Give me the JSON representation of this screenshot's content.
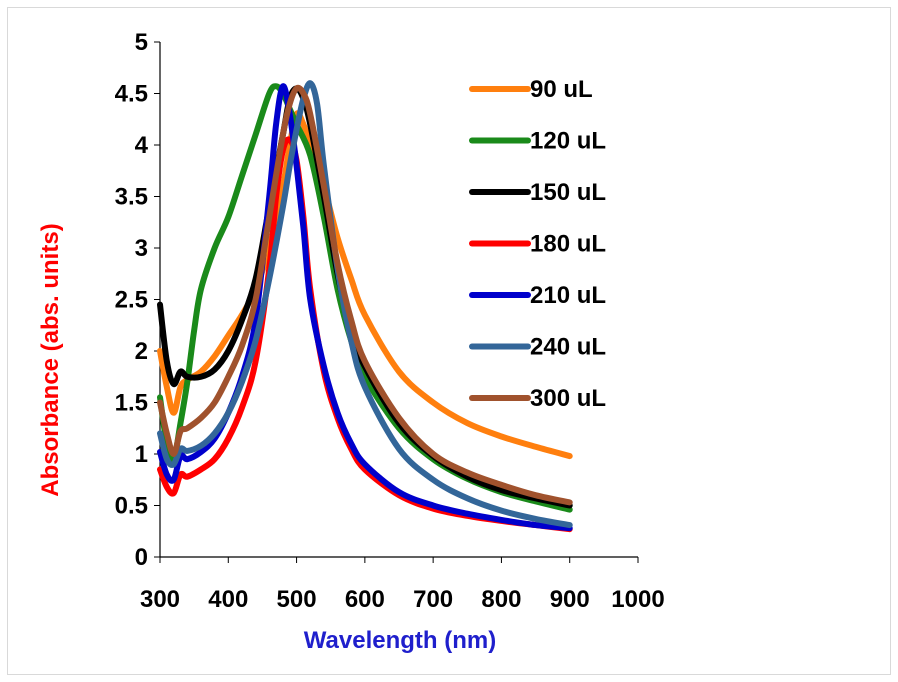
{
  "chart_data": {
    "type": "line",
    "xlabel": "Wavelength (nm)",
    "ylabel": "Absorbance (abs. units)",
    "xlabel_color": "#1f1fcc",
    "ylabel_color": "#ff0000",
    "xlim": [
      300,
      1000
    ],
    "ylim": [
      0,
      5
    ],
    "xticks": [
      300,
      400,
      500,
      600,
      700,
      800,
      900,
      1000
    ],
    "yticks": [
      0,
      0.5,
      1,
      1.5,
      2,
      2.5,
      3,
      3.5,
      4,
      4.5,
      5
    ],
    "ytick_labels": [
      "0",
      "0.5",
      "1",
      "1.5",
      "2",
      "2.5",
      "3",
      "3.5",
      "4",
      "4.5",
      "5"
    ],
    "grid": false,
    "legend_position": "top-right",
    "series": [
      {
        "name": "90 uL",
        "color": "#ff7f0e",
        "points": [
          [
            300,
            2.0
          ],
          [
            310,
            1.65
          ],
          [
            320,
            1.4
          ],
          [
            330,
            1.65
          ],
          [
            340,
            1.72
          ],
          [
            360,
            1.8
          ],
          [
            380,
            1.95
          ],
          [
            400,
            2.15
          ],
          [
            420,
            2.35
          ],
          [
            440,
            2.6
          ],
          [
            460,
            3.0
          ],
          [
            480,
            3.6
          ],
          [
            490,
            4.0
          ],
          [
            500,
            4.3
          ],
          [
            510,
            4.2
          ],
          [
            520,
            4.0
          ],
          [
            540,
            3.6
          ],
          [
            560,
            3.1
          ],
          [
            580,
            2.7
          ],
          [
            600,
            2.35
          ],
          [
            650,
            1.8
          ],
          [
            700,
            1.5
          ],
          [
            750,
            1.3
          ],
          [
            800,
            1.17
          ],
          [
            850,
            1.07
          ],
          [
            900,
            0.98
          ]
        ]
      },
      {
        "name": "120 uL",
        "color": "#1a8a1a",
        "points": [
          [
            300,
            1.55
          ],
          [
            310,
            1.1
          ],
          [
            320,
            0.95
          ],
          [
            330,
            1.3
          ],
          [
            340,
            1.7
          ],
          [
            350,
            2.2
          ],
          [
            360,
            2.6
          ],
          [
            380,
            3.0
          ],
          [
            400,
            3.3
          ],
          [
            420,
            3.7
          ],
          [
            440,
            4.1
          ],
          [
            460,
            4.5
          ],
          [
            470,
            4.57
          ],
          [
            480,
            4.5
          ],
          [
            490,
            4.35
          ],
          [
            500,
            4.2
          ],
          [
            520,
            3.9
          ],
          [
            540,
            3.3
          ],
          [
            560,
            2.6
          ],
          [
            580,
            2.1
          ],
          [
            600,
            1.75
          ],
          [
            650,
            1.25
          ],
          [
            700,
            0.95
          ],
          [
            750,
            0.76
          ],
          [
            800,
            0.63
          ],
          [
            850,
            0.54
          ],
          [
            900,
            0.46
          ]
        ]
      },
      {
        "name": "150 uL",
        "color": "#000000",
        "points": [
          [
            300,
            2.45
          ],
          [
            310,
            1.9
          ],
          [
            320,
            1.68
          ],
          [
            330,
            1.8
          ],
          [
            340,
            1.75
          ],
          [
            360,
            1.75
          ],
          [
            380,
            1.82
          ],
          [
            400,
            2.0
          ],
          [
            420,
            2.3
          ],
          [
            440,
            2.7
          ],
          [
            460,
            3.4
          ],
          [
            480,
            4.1
          ],
          [
            490,
            4.45
          ],
          [
            500,
            4.55
          ],
          [
            510,
            4.45
          ],
          [
            520,
            4.2
          ],
          [
            540,
            3.5
          ],
          [
            560,
            2.75
          ],
          [
            580,
            2.2
          ],
          [
            600,
            1.85
          ],
          [
            650,
            1.3
          ],
          [
            700,
            0.98
          ],
          [
            750,
            0.78
          ],
          [
            800,
            0.65
          ],
          [
            850,
            0.57
          ],
          [
            900,
            0.5
          ]
        ]
      },
      {
        "name": "180 uL",
        "color": "#ff0000",
        "points": [
          [
            300,
            0.85
          ],
          [
            310,
            0.68
          ],
          [
            320,
            0.62
          ],
          [
            330,
            0.8
          ],
          [
            340,
            0.78
          ],
          [
            360,
            0.85
          ],
          [
            380,
            0.95
          ],
          [
            400,
            1.15
          ],
          [
            420,
            1.45
          ],
          [
            440,
            1.9
          ],
          [
            460,
            2.8
          ],
          [
            470,
            3.5
          ],
          [
            480,
            3.95
          ],
          [
            490,
            4.05
          ],
          [
            500,
            3.85
          ],
          [
            510,
            3.3
          ],
          [
            520,
            2.6
          ],
          [
            540,
            1.8
          ],
          [
            560,
            1.35
          ],
          [
            580,
            1.05
          ],
          [
            600,
            0.85
          ],
          [
            650,
            0.6
          ],
          [
            700,
            0.47
          ],
          [
            750,
            0.4
          ],
          [
            800,
            0.35
          ],
          [
            850,
            0.31
          ],
          [
            900,
            0.27
          ]
        ]
      },
      {
        "name": "210 uL",
        "color": "#0000cc",
        "points": [
          [
            300,
            1.02
          ],
          [
            310,
            0.8
          ],
          [
            320,
            0.75
          ],
          [
            330,
            0.98
          ],
          [
            340,
            0.95
          ],
          [
            360,
            1.02
          ],
          [
            380,
            1.15
          ],
          [
            400,
            1.4
          ],
          [
            420,
            1.75
          ],
          [
            440,
            2.3
          ],
          [
            460,
            3.5
          ],
          [
            470,
            4.2
          ],
          [
            480,
            4.57
          ],
          [
            490,
            4.3
          ],
          [
            500,
            3.8
          ],
          [
            510,
            3.2
          ],
          [
            520,
            2.5
          ],
          [
            540,
            1.85
          ],
          [
            560,
            1.4
          ],
          [
            580,
            1.1
          ],
          [
            600,
            0.9
          ],
          [
            650,
            0.63
          ],
          [
            700,
            0.5
          ],
          [
            750,
            0.42
          ],
          [
            800,
            0.36
          ],
          [
            850,
            0.31
          ],
          [
            900,
            0.28
          ]
        ]
      },
      {
        "name": "240 uL",
        "color": "#336699",
        "points": [
          [
            300,
            1.2
          ],
          [
            310,
            0.95
          ],
          [
            320,
            0.9
          ],
          [
            330,
            1.05
          ],
          [
            340,
            1.03
          ],
          [
            360,
            1.08
          ],
          [
            380,
            1.2
          ],
          [
            400,
            1.4
          ],
          [
            420,
            1.7
          ],
          [
            440,
            2.1
          ],
          [
            460,
            2.7
          ],
          [
            480,
            3.4
          ],
          [
            490,
            3.8
          ],
          [
            500,
            4.15
          ],
          [
            510,
            4.45
          ],
          [
            520,
            4.6
          ],
          [
            530,
            4.4
          ],
          [
            540,
            3.8
          ],
          [
            560,
            2.8
          ],
          [
            580,
            2.1
          ],
          [
            600,
            1.65
          ],
          [
            650,
            1.05
          ],
          [
            700,
            0.75
          ],
          [
            750,
            0.57
          ],
          [
            800,
            0.45
          ],
          [
            850,
            0.37
          ],
          [
            900,
            0.31
          ]
        ]
      },
      {
        "name": "300 uL",
        "color": "#a0522d",
        "points": [
          [
            300,
            1.5
          ],
          [
            310,
            1.2
          ],
          [
            320,
            1.0
          ],
          [
            330,
            1.22
          ],
          [
            340,
            1.25
          ],
          [
            360,
            1.35
          ],
          [
            380,
            1.5
          ],
          [
            400,
            1.75
          ],
          [
            420,
            2.05
          ],
          [
            440,
            2.5
          ],
          [
            460,
            3.3
          ],
          [
            480,
            4.1
          ],
          [
            490,
            4.4
          ],
          [
            500,
            4.55
          ],
          [
            510,
            4.5
          ],
          [
            520,
            4.3
          ],
          [
            540,
            3.6
          ],
          [
            560,
            2.85
          ],
          [
            580,
            2.3
          ],
          [
            600,
            1.9
          ],
          [
            650,
            1.35
          ],
          [
            700,
            1.0
          ],
          [
            750,
            0.82
          ],
          [
            800,
            0.7
          ],
          [
            850,
            0.6
          ],
          [
            900,
            0.53
          ]
        ]
      }
    ]
  }
}
